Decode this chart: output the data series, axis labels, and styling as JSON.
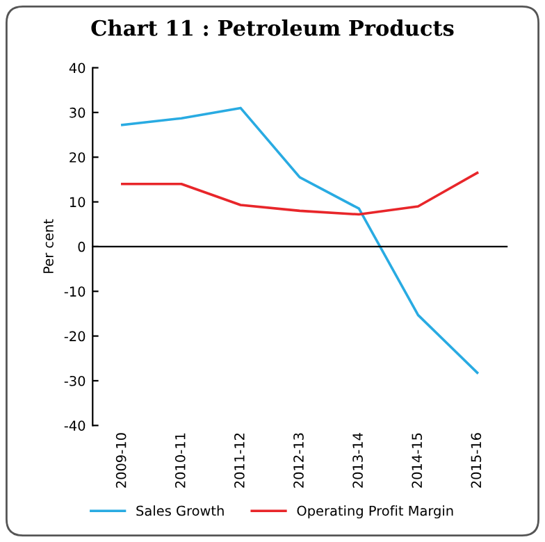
{
  "chart_data": {
    "type": "line",
    "title": "Chart 11 : Petroleum Products",
    "ylabel": "Per cent",
    "categories": [
      "2009-10",
      "2010-11",
      "2011-12",
      "2012-13",
      "2013-14",
      "2014-15",
      "2015-16"
    ],
    "series": [
      {
        "name": "Sales Growth",
        "color": "#29abe2",
        "values": [
          27.2,
          28.7,
          31.0,
          15.5,
          8.5,
          -15.3,
          -28.2
        ]
      },
      {
        "name": "Operating Profit Margin",
        "color": "#e8262a",
        "values": [
          14.0,
          14.0,
          9.3,
          8.0,
          7.2,
          9.0,
          16.5
        ]
      }
    ],
    "ylim": [
      -40,
      40
    ],
    "yticks": [
      -40,
      -30,
      -20,
      -10,
      0,
      10,
      20,
      30,
      40
    ],
    "legend": "bottom",
    "marker": "none",
    "line_style": "solid"
  }
}
